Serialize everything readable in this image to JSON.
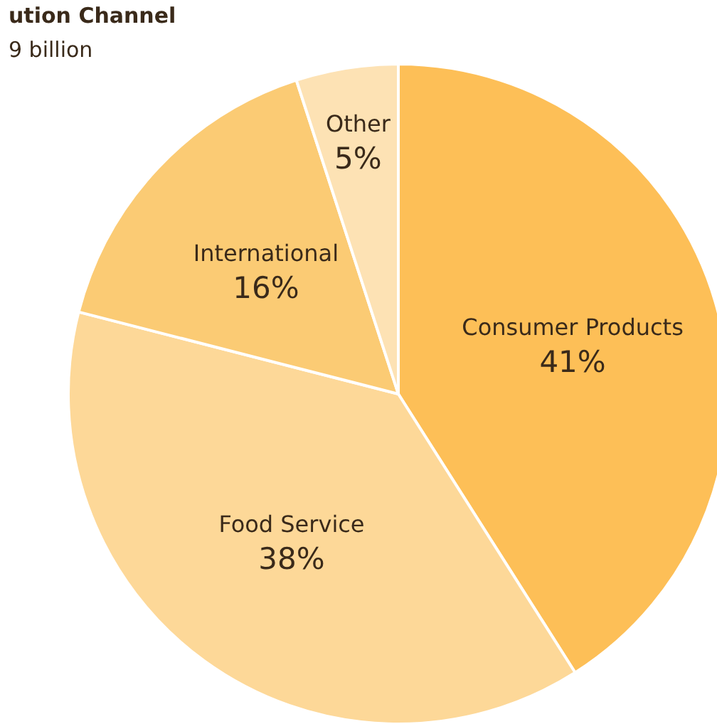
{
  "chart_data": {
    "type": "pie",
    "title": "ution Channel",
    "subtitle": "9 billion",
    "categories": [
      "Consumer Products",
      "Food Service",
      "International",
      "Other"
    ],
    "values": [
      41,
      38,
      16,
      5
    ],
    "value_labels": [
      "41%",
      "38%",
      "16%",
      "5%"
    ],
    "colors": [
      "#fdbf57",
      "#fdd898",
      "#fbcb74",
      "#fde2b4"
    ],
    "legend": false
  }
}
